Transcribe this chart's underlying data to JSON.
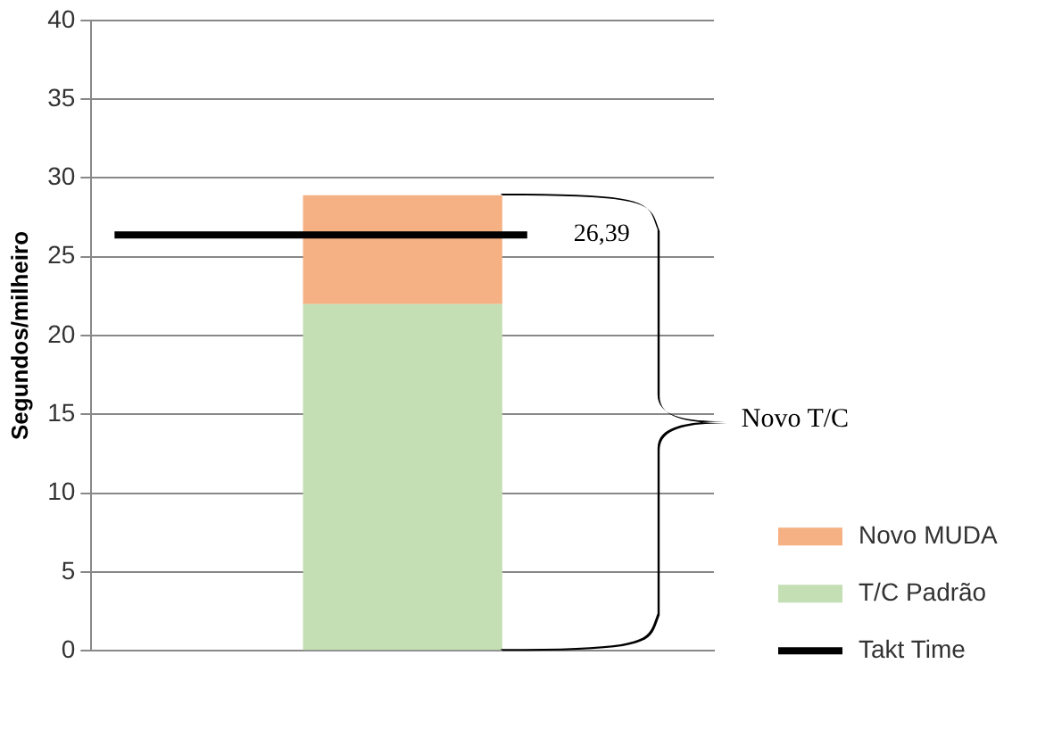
{
  "chart_data": {
    "type": "bar",
    "ylabel": "Segundos/milheiro",
    "categories": [
      null
    ],
    "stacked": true,
    "series": [
      {
        "name": "T/C Padrão",
        "color": "#c4dfb4",
        "values": [
          22
        ]
      },
      {
        "name": "Novo MUDA",
        "color": "#f5b183",
        "values": [
          6.9
        ]
      }
    ],
    "ylim": [
      0,
      40
    ],
    "yticks": [
      0,
      5,
      10,
      15,
      20,
      25,
      30,
      35,
      40
    ],
    "grid": "y",
    "legend": "right",
    "ref_lines": [
      {
        "axis": "y",
        "value": 26.39,
        "label": "Takt Time",
        "color": "#000000"
      }
    ],
    "annotations": [
      "26,39",
      "Novo T/C"
    ]
  }
}
